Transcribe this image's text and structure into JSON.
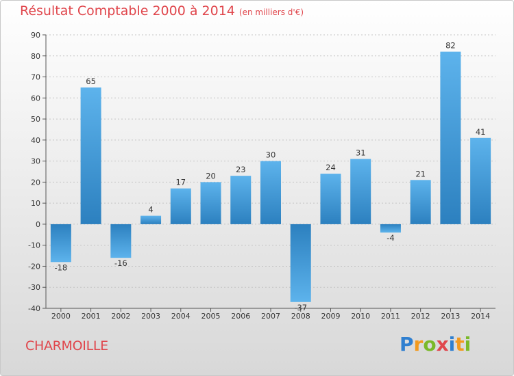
{
  "header": {
    "title": "Résultat Comptable 2000 à 2014",
    "unit": "(en milliers d'€)"
  },
  "commune": "CHARMOILLE",
  "brand": {
    "letters": [
      "P",
      "r",
      "o",
      "x",
      "i",
      "t",
      "i"
    ],
    "colors": [
      "#2f7fd0",
      "#f29a1f",
      "#7ab929",
      "#e0464c",
      "#2f7fd0",
      "#f29a1f",
      "#7ab929"
    ]
  },
  "colors": {
    "bar_light": "#5db3ec",
    "bar_dark": "#2c80bf",
    "title": "#e0464c"
  },
  "chart_data": {
    "type": "bar",
    "title": "Résultat Comptable 2000 à 2014",
    "subtitle": "(en milliers d'€)",
    "xlabel": "",
    "ylabel": "",
    "categories": [
      "2000",
      "2001",
      "2002",
      "2003",
      "2004",
      "2005",
      "2006",
      "2007",
      "2008",
      "2009",
      "2010",
      "2011",
      "2012",
      "2013",
      "2014"
    ],
    "values": [
      -18,
      65,
      -16,
      4,
      17,
      20,
      23,
      30,
      -37,
      24,
      31,
      -4,
      21,
      82,
      41
    ],
    "value_labels": [
      "-18",
      "65",
      "-16",
      "4",
      "17",
      "20",
      "23",
      "30",
      "-37",
      "24",
      "31",
      "-4",
      "21",
      "82",
      "41"
    ],
    "ylim": [
      -40,
      90
    ],
    "yticks": [
      90,
      80,
      70,
      60,
      50,
      40,
      30,
      20,
      10,
      0,
      -10,
      -20,
      -30,
      -40
    ],
    "ytick_labels": [
      "90",
      "80",
      "70",
      "60",
      "50",
      "40",
      "30",
      "20",
      "10",
      "0",
      "-10",
      "-20",
      "-30",
      "-40"
    ],
    "grid": true
  }
}
